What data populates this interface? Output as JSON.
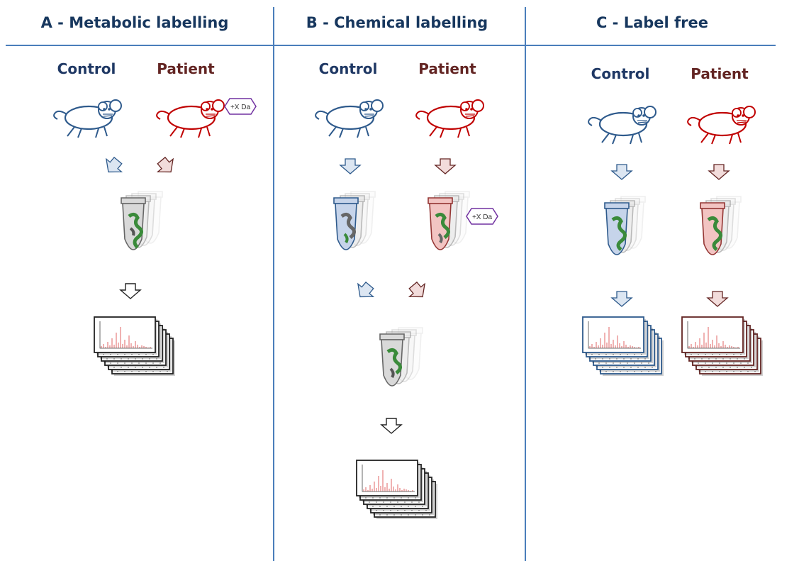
{
  "panels": [
    {
      "title": "A - Metabolic labelling",
      "control_label": "Control",
      "patient_label": "Patient"
    },
    {
      "title": "B - Chemical labelling",
      "control_label": "Control",
      "patient_label": "Patient"
    },
    {
      "title": "C - Label free",
      "control_label": "Control",
      "patient_label": "Patient"
    }
  ],
  "mass_tag": "+X Da",
  "colors": {
    "control": "#1f3864",
    "patient": "#632523",
    "mouse_control": "#2e5a8c",
    "mouse_patient": "#c00000",
    "divider": "#4a7ebb",
    "tag": "#7030a0"
  }
}
